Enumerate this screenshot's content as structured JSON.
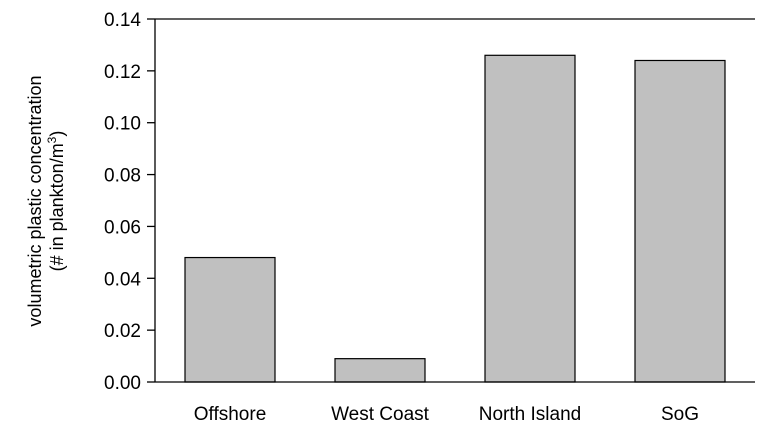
{
  "chart_data": {
    "type": "bar",
    "categories": [
      "Offshore",
      "West Coast",
      "North Island",
      "SoG"
    ],
    "values": [
      0.048,
      0.009,
      0.126,
      0.124
    ],
    "ylabel_line1": "volumetric plastic concentration",
    "ylabel_line2": "(# in plankton/m",
    "ylabel_sup": "3",
    "ylabel_close": ")",
    "ylim": [
      0,
      0.14
    ],
    "yticks": [
      "0.00",
      "0.02",
      "0.04",
      "0.06",
      "0.08",
      "0.10",
      "0.12",
      "0.14"
    ],
    "bar_color": "#c0c0c0",
    "grid": false
  }
}
